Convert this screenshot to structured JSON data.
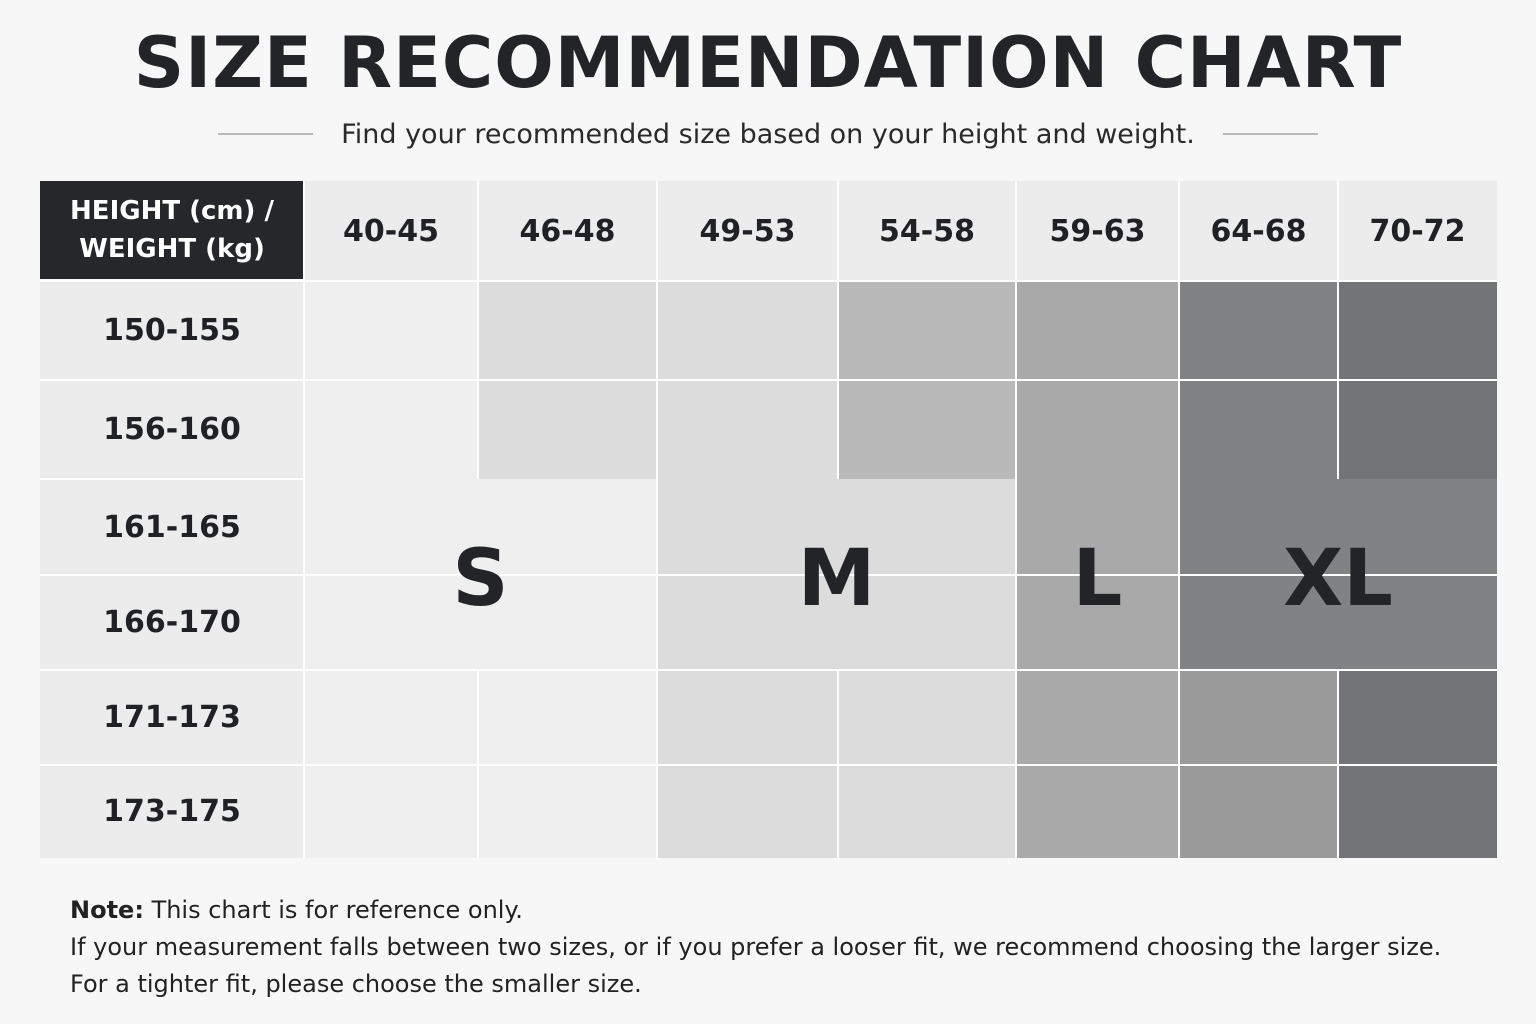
{
  "title": "SIZE RECOMMENDATION CHART",
  "subtitle": "Find your recommended size based on your height and weight.",
  "chart_data": {
    "type": "table",
    "corner_header": [
      "HEIGHT (cm) /",
      "WEIGHT (kg)"
    ],
    "weight_ranges_kg": [
      "40-45",
      "46-48",
      "49-53",
      "54-58",
      "59-63",
      "64-68",
      "70-72"
    ],
    "height_ranges_cm": [
      "150-155",
      "156-160",
      "161-165",
      "166-170",
      "171-173",
      "173-175"
    ],
    "size_labels": [
      "S",
      "M",
      "L",
      "XL"
    ],
    "shade_levels": [
      [
        0,
        1,
        1,
        3,
        4,
        6,
        7
      ],
      [
        0,
        1,
        1,
        3,
        4,
        6,
        7
      ],
      [
        0,
        0,
        1,
        1,
        4,
        6,
        6
      ],
      [
        0,
        0,
        1,
        1,
        4,
        6,
        6
      ],
      [
        0,
        0,
        1,
        1,
        4,
        5,
        7
      ],
      [
        0,
        0,
        1,
        1,
        4,
        5,
        7
      ]
    ],
    "shade_colors": [
      "#efefef",
      "#dcdcdd",
      "#d4d4d5",
      "#b9b9ba",
      "#a9a9aa",
      "#9a9a9b",
      "#818284",
      "#737477"
    ],
    "merged_size_blocks": [
      {
        "label": "S",
        "rows": [
          2,
          3
        ],
        "cols": [
          0,
          1
        ]
      },
      {
        "label": "M",
        "rows": [
          2,
          3
        ],
        "cols": [
          2,
          3
        ]
      },
      {
        "label": "L",
        "rows": [
          2,
          3
        ],
        "cols": [
          4,
          4
        ]
      },
      {
        "label": "XL",
        "rows": [
          2,
          3
        ],
        "cols": [
          5,
          6
        ]
      }
    ]
  },
  "note": {
    "label": "Note:",
    "line1": "This chart is for reference only.",
    "line2": "If your measurement falls between two sizes, or if you prefer a looser fit, we recommend choosing the larger size.",
    "line3": "For a tighter fit, please choose the smaller size."
  }
}
